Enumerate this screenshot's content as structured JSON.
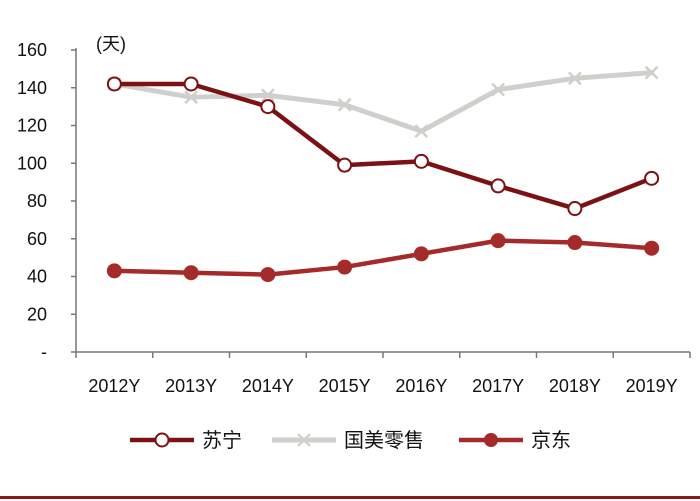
{
  "chart_data": {
    "type": "line",
    "title": "",
    "unit_label": "(天)",
    "xlabel": "",
    "ylabel": "",
    "categories": [
      "2012Y",
      "2013Y",
      "2014Y",
      "2015Y",
      "2016Y",
      "2017Y",
      "2018Y",
      "2019Y"
    ],
    "ylim": [
      0,
      160
    ],
    "y_ticks": [
      0,
      20,
      40,
      60,
      80,
      100,
      120,
      140,
      160
    ],
    "y_tick_labels": [
      "-",
      "20",
      "40",
      "60",
      "80",
      "100",
      "120",
      "140",
      "160"
    ],
    "grid": false,
    "legend_position": "bottom",
    "series": [
      {
        "name": "苏宁",
        "color": "#7b1113",
        "marker": "hollow-circle",
        "values": [
          142,
          142,
          130,
          99,
          101,
          88,
          76,
          92
        ]
      },
      {
        "name": "国美零售",
        "color": "#cfcfcb",
        "marker": "x",
        "values": [
          142,
          135,
          136,
          131,
          117,
          139,
          145,
          148
        ]
      },
      {
        "name": "京东",
        "color": "#a52a2a",
        "marker": "filled-circle",
        "values": [
          43,
          42,
          41,
          45,
          52,
          59,
          58,
          55
        ]
      }
    ]
  }
}
